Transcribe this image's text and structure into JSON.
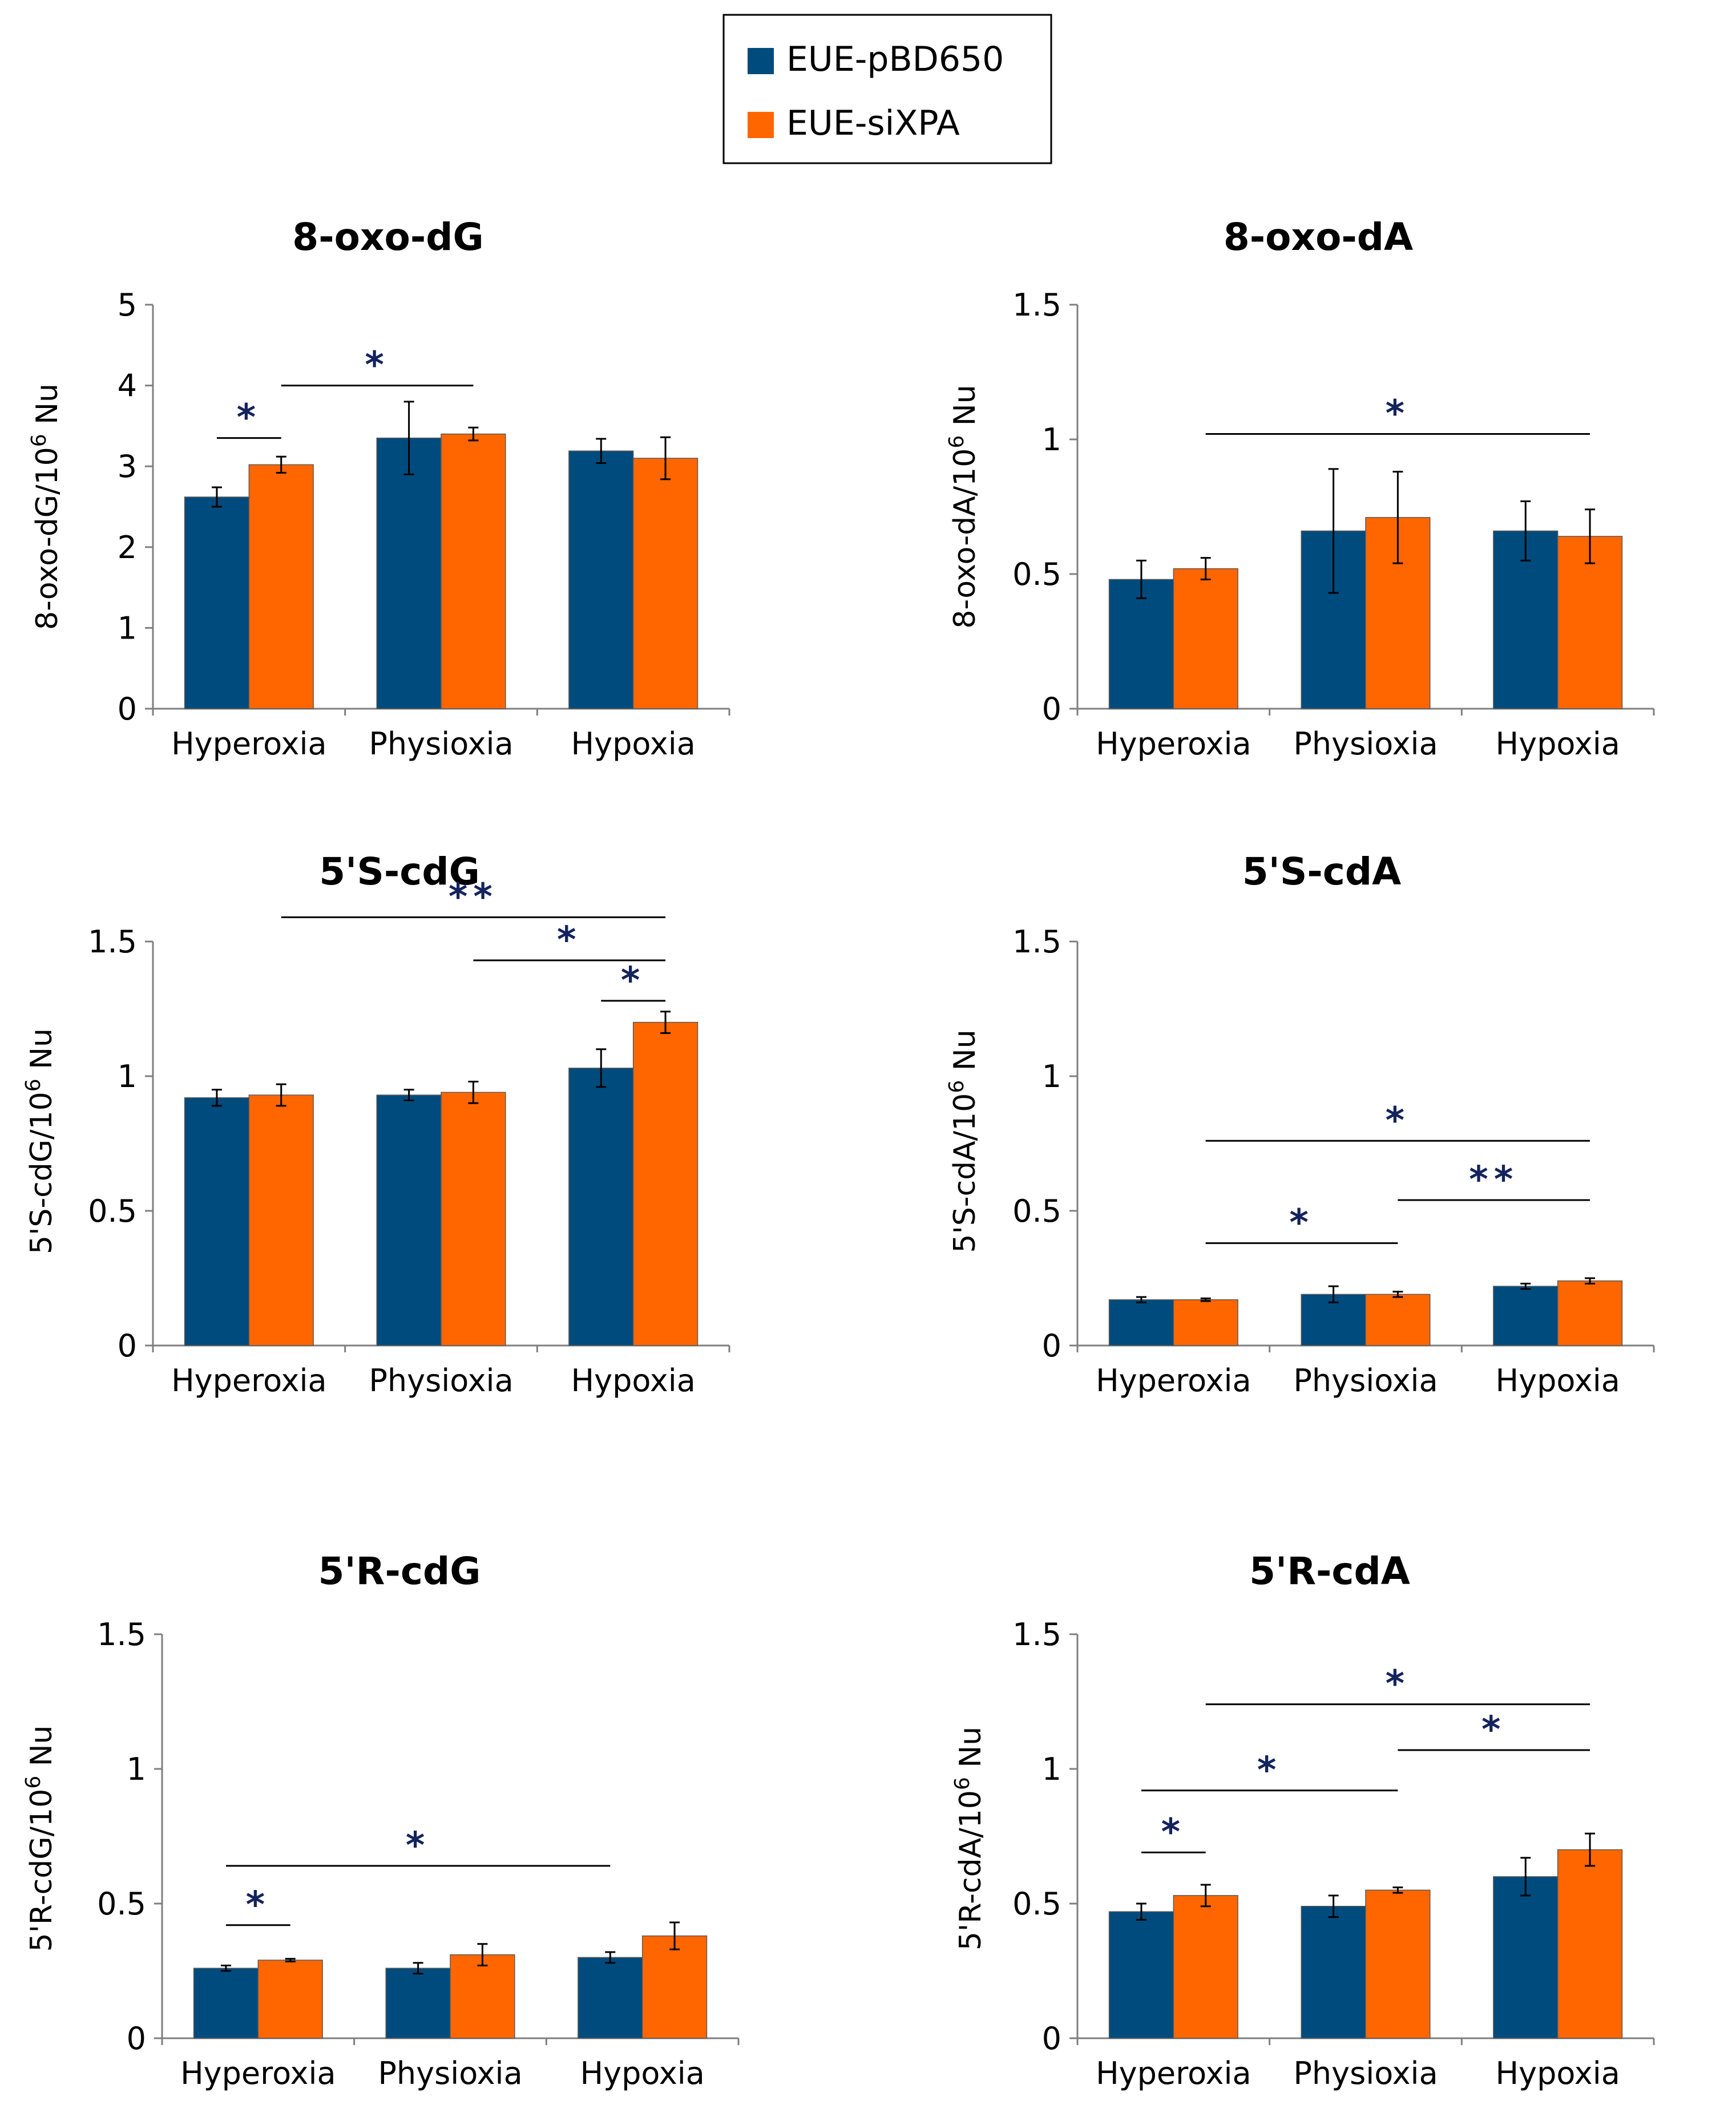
{
  "colors": {
    "series_a": "#004b7d",
    "series_b": "#ff6600",
    "star": "#13235d",
    "axis": "#7f7f7f"
  },
  "legend": {
    "items": [
      {
        "label": "EUE-pBD650",
        "color": "#004b7d"
      },
      {
        "label": "EUE-siXPA",
        "color": "#ff6600"
      }
    ]
  },
  "chart_data": [
    {
      "type": "bar",
      "title": "8-oxo-dG",
      "ylabel": "8-oxo-dG/10",
      "ylabel_sup": "6",
      "ylabel_suffix": " Nu",
      "categories": [
        "Hyperoxia",
        "Physioxia",
        "Hypoxia"
      ],
      "ylim": [
        0,
        5
      ],
      "yticks": [
        0,
        1,
        2,
        3,
        4,
        5
      ],
      "ytick_labels": [
        "0",
        "1",
        "2",
        "3",
        "4",
        "5"
      ],
      "series": [
        {
          "name": "EUE-pBD650",
          "values": [
            2.62,
            3.35,
            3.19
          ],
          "errors": [
            0.12,
            0.45,
            0.15
          ]
        },
        {
          "name": "EUE-siXPA",
          "values": [
            3.02,
            3.4,
            3.1
          ],
          "errors": [
            0.1,
            0.08,
            0.26
          ]
        }
      ],
      "annotations": [
        {
          "from": [
            0,
            0
          ],
          "to": [
            0,
            1
          ],
          "line_y": 3.35,
          "label": "*"
        },
        {
          "from": [
            0,
            1
          ],
          "to": [
            1,
            1
          ],
          "line_y": 4.0,
          "label": "*"
        }
      ]
    },
    {
      "type": "bar",
      "title": "8-oxo-dA",
      "ylabel": "8-oxo-dA/10",
      "ylabel_sup": "6",
      "ylabel_suffix": " Nu",
      "categories": [
        "Hyperoxia",
        "Physioxia",
        "Hypoxia"
      ],
      "ylim": [
        0,
        1.5
      ],
      "yticks": [
        0,
        0.5,
        1,
        1.5
      ],
      "ytick_labels": [
        "0",
        "0.5",
        "1",
        "1.5"
      ],
      "series": [
        {
          "name": "EUE-pBD650",
          "values": [
            0.48,
            0.66,
            0.66
          ],
          "errors": [
            0.07,
            0.23,
            0.11
          ]
        },
        {
          "name": "EUE-siXPA",
          "values": [
            0.52,
            0.71,
            0.64
          ],
          "errors": [
            0.04,
            0.17,
            0.1
          ]
        }
      ],
      "annotations": [
        {
          "from": [
            0,
            1
          ],
          "to": [
            2,
            1
          ],
          "line_y": 1.02,
          "label": "*"
        }
      ]
    },
    {
      "type": "bar",
      "title": "5'S-cdG",
      "ylabel": "5'S-cdG/10",
      "ylabel_sup": "6",
      "ylabel_suffix": " Nu",
      "categories": [
        "Hyperoxia",
        "Physioxia",
        "Hypoxia"
      ],
      "ylim": [
        0,
        1.5
      ],
      "yticks": [
        0,
        0.5,
        1,
        1.5
      ],
      "ytick_labels": [
        "0",
        "0.5",
        "1",
        "1.5"
      ],
      "series": [
        {
          "name": "EUE-pBD650",
          "values": [
            0.92,
            0.93,
            1.03
          ],
          "errors": [
            0.03,
            0.02,
            0.07
          ]
        },
        {
          "name": "EUE-siXPA",
          "values": [
            0.93,
            0.94,
            1.2
          ],
          "errors": [
            0.04,
            0.04,
            0.04
          ]
        }
      ],
      "annotations": [
        {
          "from": [
            0,
            1
          ],
          "to": [
            2,
            1
          ],
          "line_y": 1.59,
          "label": "**"
        },
        {
          "from": [
            1,
            1
          ],
          "to": [
            2,
            1
          ],
          "line_y": 1.43,
          "label": "*"
        },
        {
          "from": [
            2,
            0
          ],
          "to": [
            2,
            1
          ],
          "line_y": 1.28,
          "label": "*"
        }
      ]
    },
    {
      "type": "bar",
      "title": "5'S-cdA",
      "ylabel": "5'S-cdA/10",
      "ylabel_sup": "6",
      "ylabel_suffix": " Nu",
      "categories": [
        "Hyperoxia",
        "Physioxia",
        "Hypoxia"
      ],
      "ylim": [
        0,
        1.5
      ],
      "yticks": [
        0,
        0.5,
        1,
        1.5
      ],
      "ytick_labels": [
        "0",
        "0.5",
        "1",
        "1.5"
      ],
      "series": [
        {
          "name": "EUE-pBD650",
          "values": [
            0.17,
            0.19,
            0.22
          ],
          "errors": [
            0.01,
            0.03,
            0.01
          ]
        },
        {
          "name": "EUE-siXPA",
          "values": [
            0.17,
            0.19,
            0.24
          ],
          "errors": [
            0.005,
            0.01,
            0.01
          ]
        }
      ],
      "annotations": [
        {
          "from": [
            0,
            1
          ],
          "to": [
            2,
            1
          ],
          "line_y": 0.76,
          "label": "*"
        },
        {
          "from": [
            1,
            1
          ],
          "to": [
            2,
            1
          ],
          "line_y": 0.54,
          "label": "**"
        },
        {
          "from": [
            0,
            1
          ],
          "to": [
            1,
            1
          ],
          "line_y": 0.38,
          "label": "*"
        }
      ]
    },
    {
      "type": "bar",
      "title": "5'R-cdG",
      "ylabel": "5'R-cdG/10",
      "ylabel_sup": "6",
      "ylabel_suffix": " Nu",
      "categories": [
        "Hyperoxia",
        "Physioxia",
        "Hypoxia"
      ],
      "ylim": [
        0,
        1.5
      ],
      "yticks": [
        0,
        0.5,
        1,
        1.5
      ],
      "ytick_labels": [
        "0",
        "0.5",
        "1",
        "1.5"
      ],
      "series": [
        {
          "name": "EUE-pBD650",
          "values": [
            0.26,
            0.26,
            0.3
          ],
          "errors": [
            0.01,
            0.02,
            0.02
          ]
        },
        {
          "name": "EUE-siXPA",
          "values": [
            0.29,
            0.31,
            0.38
          ],
          "errors": [
            0.005,
            0.04,
            0.05
          ]
        }
      ],
      "annotations": [
        {
          "from": [
            0,
            0
          ],
          "to": [
            2,
            0
          ],
          "line_y": 0.64,
          "label": "*"
        },
        {
          "from": [
            0,
            0
          ],
          "to": [
            0,
            1
          ],
          "line_y": 0.42,
          "label": "*"
        }
      ]
    },
    {
      "type": "bar",
      "title": "5'R-cdA",
      "ylabel": "5'R-cdA/10",
      "ylabel_sup": "6",
      "ylabel_suffix": " Nu",
      "categories": [
        "Hyperoxia",
        "Physioxia",
        "Hypoxia"
      ],
      "ylim": [
        0,
        1.5
      ],
      "yticks": [
        0,
        0.5,
        1,
        1.5
      ],
      "ytick_labels": [
        "0",
        "0.5",
        "1",
        "1.5"
      ],
      "series": [
        {
          "name": "EUE-pBD650",
          "values": [
            0.47,
            0.49,
            0.6
          ],
          "errors": [
            0.03,
            0.04,
            0.07
          ]
        },
        {
          "name": "EUE-siXPA",
          "values": [
            0.53,
            0.55,
            0.7
          ],
          "errors": [
            0.04,
            0.01,
            0.06
          ]
        }
      ],
      "annotations": [
        {
          "from": [
            0,
            1
          ],
          "to": [
            2,
            1
          ],
          "line_y": 1.24,
          "label": "*"
        },
        {
          "from": [
            1,
            1
          ],
          "to": [
            2,
            1
          ],
          "line_y": 1.07,
          "label": "*"
        },
        {
          "from": [
            0,
            0
          ],
          "to": [
            1,
            1
          ],
          "line_y": 0.92,
          "label": "*"
        },
        {
          "from": [
            0,
            0
          ],
          "to": [
            0,
            1
          ],
          "line_y": 0.69,
          "label": "*"
        }
      ]
    }
  ]
}
